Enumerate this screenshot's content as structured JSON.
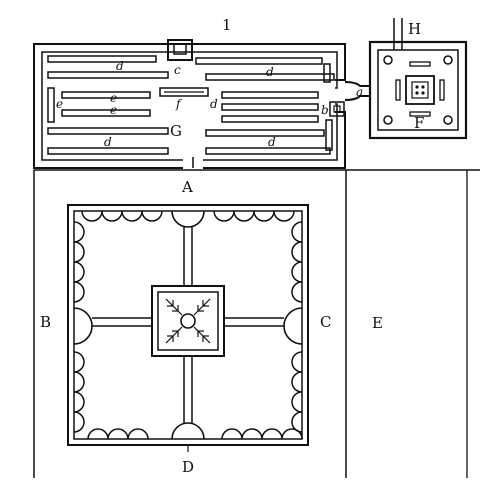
{
  "labels": {
    "one": "1",
    "H": "H",
    "A": "A",
    "B": "B",
    "C": "C",
    "D": "D",
    "E": "E",
    "F": "F",
    "G": "G",
    "a": "a",
    "b": "b",
    "c": "c",
    "d": "d",
    "e": "e",
    "f": "f"
  }
}
